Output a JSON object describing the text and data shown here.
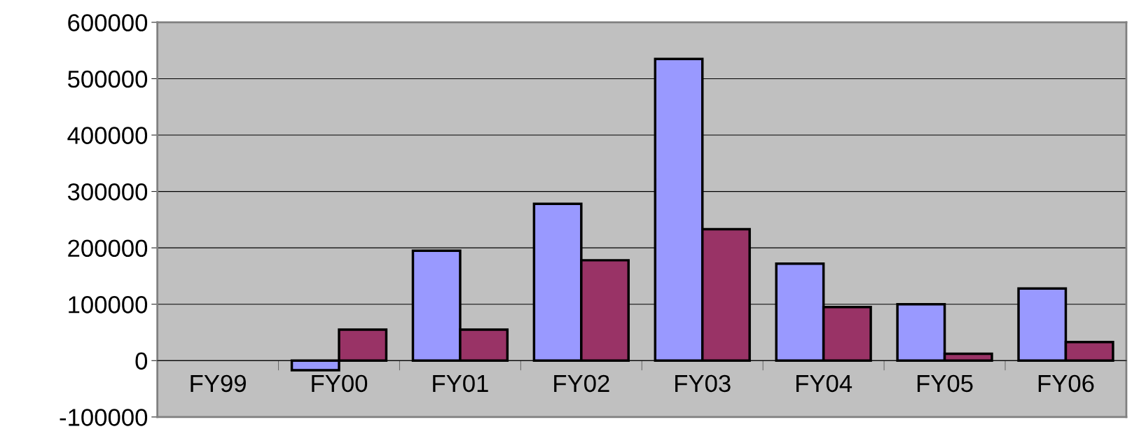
{
  "chart_data": {
    "type": "bar",
    "categories": [
      "FY99",
      "FY00",
      "FY01",
      "FY02",
      "FY03",
      "FY04",
      "FY05",
      "FY06"
    ],
    "series": [
      {
        "color": "#9999ff",
        "values": [
          null,
          -17000,
          195000,
          278000,
          535000,
          172000,
          100000,
          128000
        ]
      },
      {
        "color": "#993366",
        "values": [
          null,
          55000,
          55000,
          178000,
          233000,
          95000,
          12000,
          33000
        ]
      }
    ],
    "ylim": [
      -100000,
      600000
    ],
    "yticks": [
      -100000,
      0,
      100000,
      200000,
      300000,
      400000,
      500000,
      600000
    ],
    "grid": "y",
    "legend": false
  }
}
